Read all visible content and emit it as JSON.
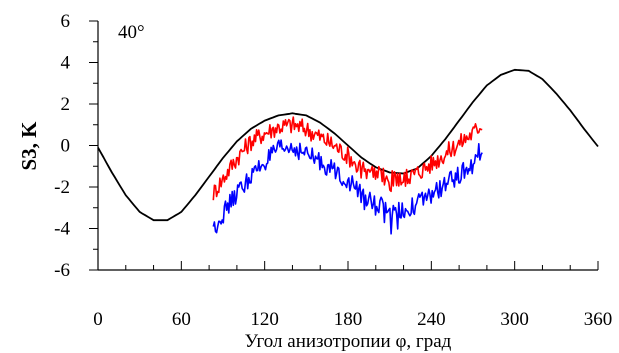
{
  "chart_data": {
    "type": "line",
    "title": "",
    "annotation": "40°",
    "xlabel": "Угол анизотропии φ, град",
    "ylabel": "S3, K",
    "xlim": [
      0,
      360
    ],
    "ylim": [
      -6,
      6
    ],
    "xticks": [
      "0",
      "60",
      "120",
      "180",
      "240",
      "300",
      "360"
    ],
    "xtick_values": [
      0,
      60,
      120,
      180,
      240,
      300,
      360
    ],
    "yticks": [
      "6",
      "4",
      "2",
      "0",
      "-2",
      "-4",
      "-6"
    ],
    "ytick_values": [
      6,
      4,
      2,
      0,
      -2,
      -4,
      -6
    ],
    "grid": false,
    "series": [
      {
        "color": "#000000",
        "style": "smooth",
        "x": [
          0,
          10,
          20,
          30,
          40,
          50,
          60,
          70,
          80,
          90,
          100,
          110,
          120,
          130,
          140,
          150,
          160,
          170,
          180,
          190,
          200,
          210,
          220,
          230,
          240,
          250,
          260,
          270,
          280,
          290,
          300,
          310,
          320,
          330,
          340,
          350,
          360
        ],
        "y": [
          -0.1,
          -1.3,
          -2.4,
          -3.2,
          -3.6,
          -3.6,
          -3.2,
          -2.4,
          -1.5,
          -0.6,
          0.2,
          0.8,
          1.2,
          1.45,
          1.55,
          1.45,
          1.1,
          0.6,
          0.0,
          -0.6,
          -1.05,
          -1.3,
          -1.35,
          -1.1,
          -0.5,
          0.3,
          1.2,
          2.1,
          2.9,
          3.4,
          3.65,
          3.6,
          3.2,
          2.5,
          1.7,
          0.8,
          -0.05
        ]
      },
      {
        "color": "#ff0000",
        "style": "noisy",
        "x": [
          83,
          90,
          100,
          110,
          120,
          130,
          140,
          150,
          160,
          170,
          180,
          190,
          200,
          210,
          220,
          230,
          240,
          250,
          260,
          270,
          277
        ],
        "y": [
          -2.3,
          -1.6,
          -0.6,
          0.2,
          0.6,
          0.9,
          1.0,
          0.8,
          0.4,
          0.0,
          -0.5,
          -1.1,
          -1.4,
          -1.6,
          -1.6,
          -1.3,
          -0.9,
          -0.4,
          0.1,
          0.6,
          1.1
        ]
      },
      {
        "color": "#0000ff",
        "style": "noisy",
        "x": [
          83,
          90,
          100,
          110,
          120,
          130,
          140,
          150,
          160,
          170,
          180,
          190,
          200,
          210,
          220,
          230,
          240,
          250,
          260,
          270,
          277
        ],
        "y": [
          -4.0,
          -3.3,
          -2.3,
          -1.5,
          -0.8,
          -0.2,
          -0.1,
          -0.4,
          -0.8,
          -1.2,
          -1.7,
          -2.4,
          -2.9,
          -3.0,
          -3.1,
          -2.8,
          -2.4,
          -1.9,
          -1.4,
          -0.9,
          0.0
        ]
      }
    ]
  }
}
